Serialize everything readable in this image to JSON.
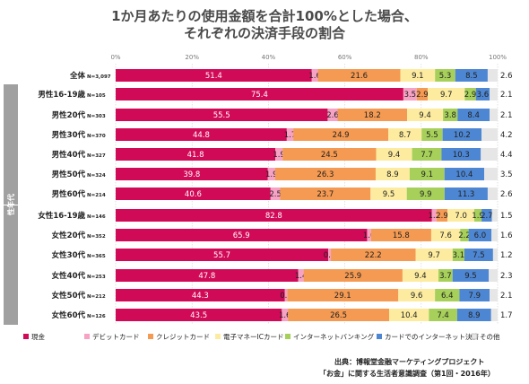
{
  "chart_data": {
    "type": "bar",
    "stacked": true,
    "orientation": "horizontal",
    "title_lines": [
      "1か月あたりの使用金額を合計100%とした場合、",
      "それぞれの決済手段の割合"
    ],
    "xlim": [
      0,
      100
    ],
    "x_ticks": [
      "0%",
      "20%",
      "40%",
      "60%",
      "80%",
      "100%"
    ],
    "group_label": "性年代",
    "categories": [
      {
        "label": "全体",
        "n": "N=3,097"
      },
      {
        "label": "男性16-19歳",
        "n": "N=105"
      },
      {
        "label": "男性20代",
        "n": "N=303"
      },
      {
        "label": "男性30代",
        "n": "N=370"
      },
      {
        "label": "男性40代",
        "n": "N=327"
      },
      {
        "label": "男性50代",
        "n": "N=324"
      },
      {
        "label": "男性60代",
        "n": "N=214"
      },
      {
        "label": "女性16-19歳",
        "n": "N=146"
      },
      {
        "label": "女性20代",
        "n": "N=352"
      },
      {
        "label": "女性30代",
        "n": "N=365"
      },
      {
        "label": "女性40代",
        "n": "N=253"
      },
      {
        "label": "女性50代",
        "n": "N=212"
      },
      {
        "label": "女性60代",
        "n": "N=126"
      }
    ],
    "series": [
      {
        "name": "現金",
        "color": "#d10a57",
        "values": [
          51.4,
          75.4,
          55.5,
          44.8,
          41.8,
          39.8,
          40.6,
          82.8,
          65.9,
          55.7,
          47.8,
          44.3,
          43.5
        ]
      },
      {
        "name": "デビットカード",
        "color": "#f7a1c4",
        "values": [
          1.6,
          3.5,
          2.6,
          1.7,
          1.9,
          1.9,
          2.5,
          1.2,
          1.0,
          0.7,
          1.4,
          0.6,
          1.6
        ]
      },
      {
        "name": "クレジットカード",
        "color": "#f59a52",
        "values": [
          21.6,
          2.9,
          18.2,
          24.9,
          24.5,
          26.3,
          23.7,
          2.9,
          15.8,
          22.2,
          25.9,
          29.1,
          26.5
        ]
      },
      {
        "name": "電子マネーICカード",
        "color": "#fdeca0",
        "values": [
          9.1,
          9.7,
          9.4,
          8.7,
          9.4,
          8.9,
          9.5,
          7.0,
          7.6,
          9.7,
          9.4,
          9.6,
          10.4
        ]
      },
      {
        "name": "インターネットバンキング",
        "color": "#a6d05a",
        "values": [
          5.3,
          2.9,
          3.8,
          5.5,
          7.7,
          9.1,
          9.9,
          1.9,
          2.2,
          3.1,
          3.7,
          6.4,
          7.4
        ]
      },
      {
        "name": "カードでのインターネット決済",
        "color": "#4d86d2",
        "values": [
          8.5,
          3.6,
          8.4,
          10.2,
          10.3,
          10.4,
          11.3,
          2.7,
          6.0,
          7.5,
          9.5,
          7.9,
          8.9
        ]
      },
      {
        "name": "その他",
        "color": "#e6e6e6",
        "values": [
          2.6,
          2.1,
          2.1,
          4.2,
          4.4,
          3.5,
          2.6,
          1.5,
          1.6,
          1.2,
          2.3,
          2.1,
          1.7
        ]
      }
    ],
    "legend_position": "bottom",
    "grid": true
  },
  "source": {
    "line1": "出典：博報堂金融マーケティングプロジェクト",
    "line2": "「お金」に関する生活者意識調査（第1回・2016年）"
  }
}
